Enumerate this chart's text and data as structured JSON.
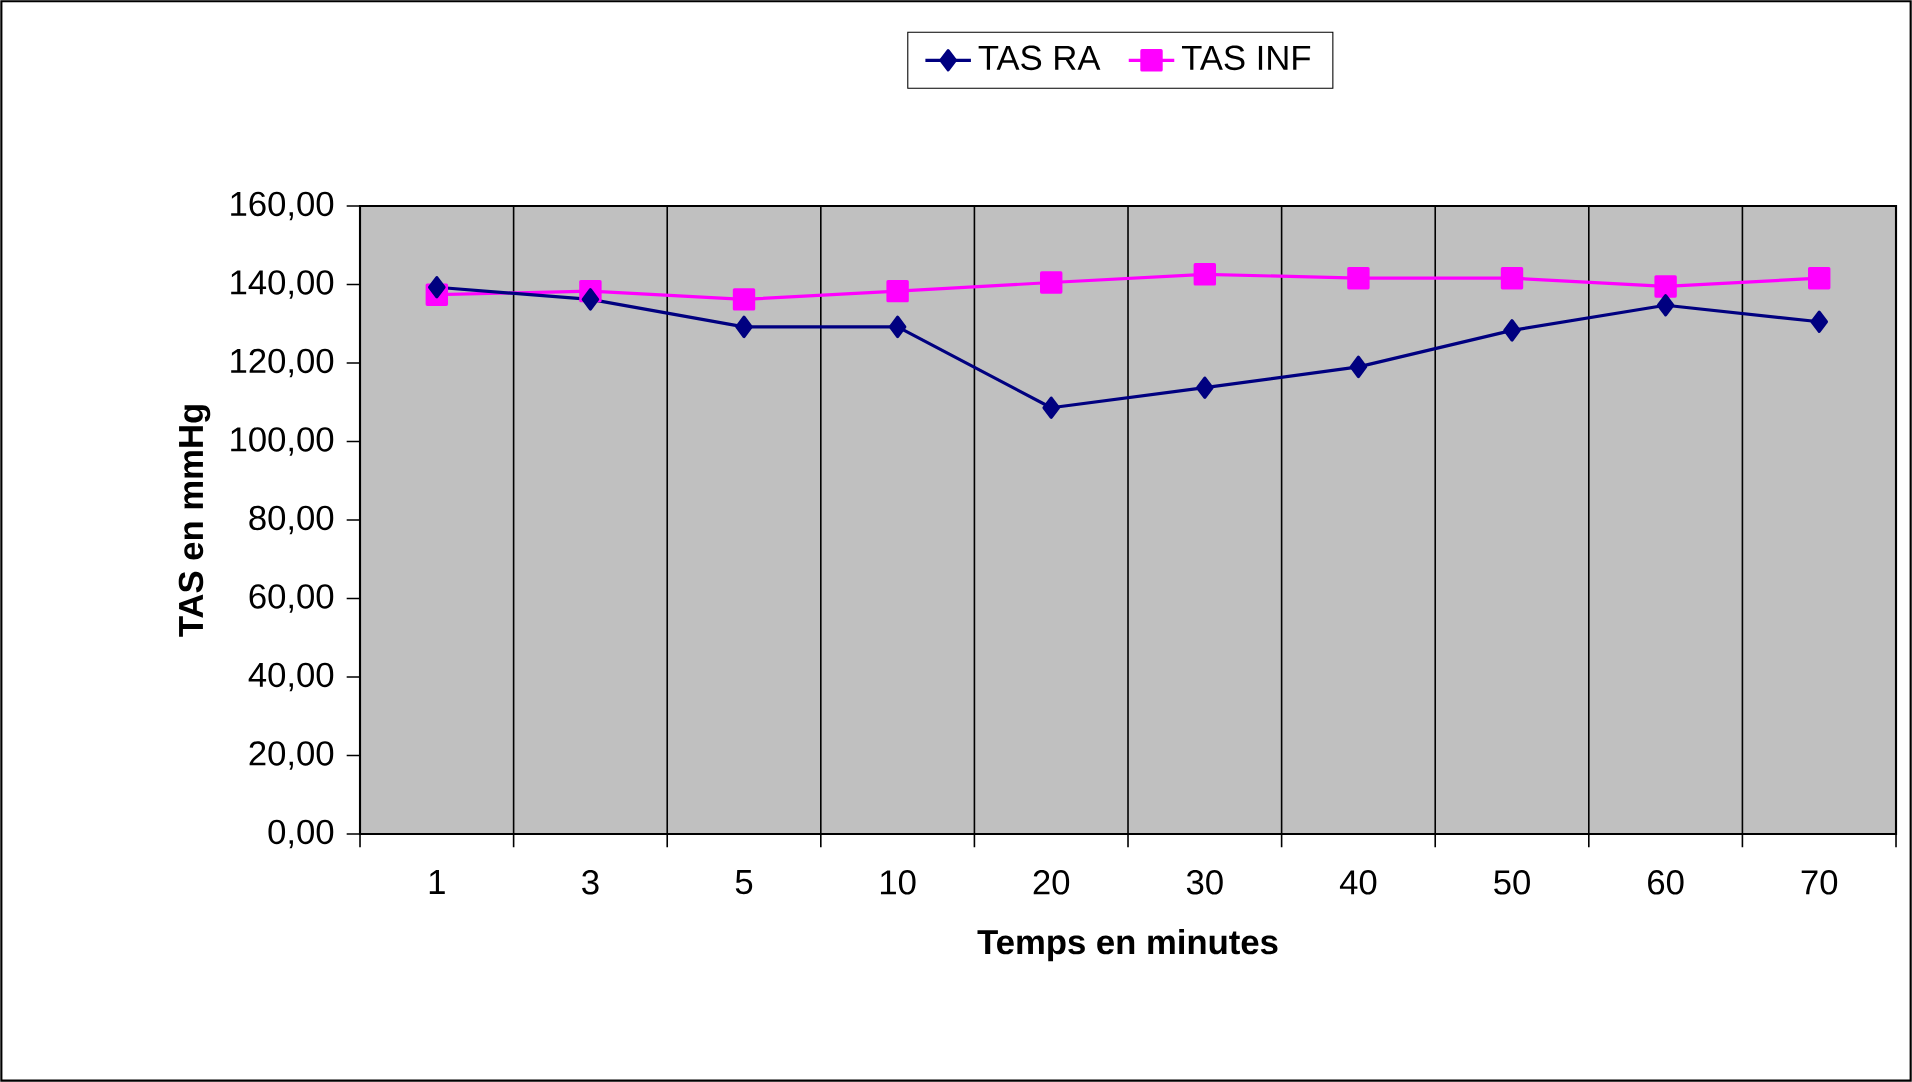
{
  "chart_data": {
    "type": "line",
    "categories": [
      "1",
      "3",
      "5",
      "10",
      "20",
      "30",
      "40",
      "50",
      "60",
      "70"
    ],
    "xlabel": "Temps en minutes",
    "ylabel": "TAS en mmHg",
    "ylim": [
      0,
      160
    ],
    "yticks": [
      {
        "value": 0,
        "label": "0,00"
      },
      {
        "value": 20,
        "label": "20,00"
      },
      {
        "value": 40,
        "label": "40,00"
      },
      {
        "value": 60,
        "label": "60,00"
      },
      {
        "value": 80,
        "label": "80,00"
      },
      {
        "value": 100,
        "label": "100,00"
      },
      {
        "value": 120,
        "label": "120,00"
      },
      {
        "value": 140,
        "label": "140,00"
      },
      {
        "value": 160,
        "label": "160,00"
      }
    ],
    "grid": "x",
    "legend": "top",
    "series": [
      {
        "name": "TAS RA",
        "color": "#000080",
        "marker": "diamond",
        "values": [
          139.3,
          136.2,
          129.2,
          129.2,
          108.6,
          113.7,
          119.0,
          128.3,
          134.7,
          130.5
        ]
      },
      {
        "name": "TAS INF",
        "color": "#ff00ff",
        "marker": "square",
        "values": [
          137.4,
          138.3,
          136.2,
          138.3,
          140.5,
          142.6,
          141.6,
          141.6,
          139.5,
          141.6
        ]
      }
    ]
  }
}
